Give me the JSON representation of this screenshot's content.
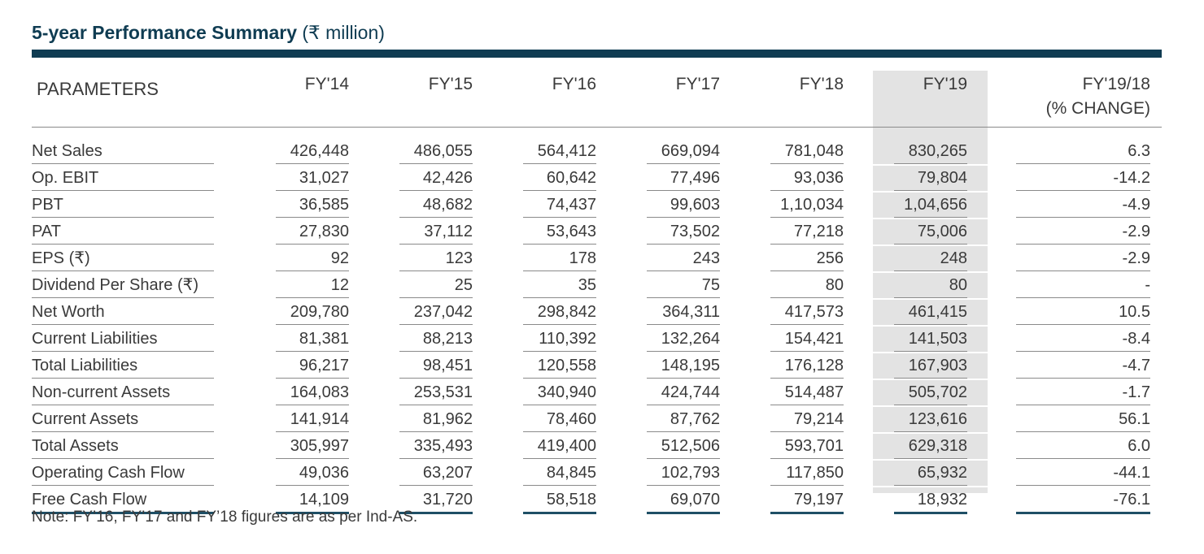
{
  "title": {
    "strong": "5-year Performance Summary",
    "unit": "(₹ million)"
  },
  "headers": {
    "param": "PARAMETERS",
    "years": [
      "FY'14",
      "FY'15",
      "FY'16",
      "FY'17",
      "FY'18",
      "FY'19"
    ],
    "change_line1": "FY'19/18",
    "change_line2": "(% CHANGE)"
  },
  "rows": [
    {
      "label": "Net Sales",
      "values": [
        "426,448",
        "486,055",
        "564,412",
        "669,094",
        "781,048",
        "830,265"
      ],
      "change": "6.3"
    },
    {
      "label": "Op. EBIT",
      "values": [
        "31,027",
        "42,426",
        "60,642",
        "77,496",
        "93,036",
        "79,804"
      ],
      "change": "-14.2"
    },
    {
      "label": "PBT",
      "values": [
        "36,585",
        "48,682",
        "74,437",
        "99,603",
        "1,10,034",
        "1,04,656"
      ],
      "change": "-4.9"
    },
    {
      "label": "PAT",
      "values": [
        "27,830",
        "37,112",
        "53,643",
        "73,502",
        "77,218",
        "75,006"
      ],
      "change": "-2.9"
    },
    {
      "label": "EPS (₹)",
      "values": [
        "92",
        "123",
        "178",
        "243",
        "256",
        "248"
      ],
      "change": "-2.9"
    },
    {
      "label": "Dividend Per Share (₹)",
      "values": [
        "12",
        "25",
        "35",
        "75",
        "80",
        "80"
      ],
      "change": "-"
    },
    {
      "label": "Net Worth",
      "values": [
        "209,780",
        "237,042",
        "298,842",
        "364,311",
        "417,573",
        "461,415"
      ],
      "change": "10.5"
    },
    {
      "label": "Current Liabilities",
      "values": [
        "81,381",
        "88,213",
        "110,392",
        "132,264",
        "154,421",
        "141,503"
      ],
      "change": "-8.4"
    },
    {
      "label": "Total Liabilities",
      "values": [
        "96,217",
        "98,451",
        "120,558",
        "148,195",
        "176,128",
        "167,903"
      ],
      "change": "-4.7"
    },
    {
      "label": "Non-current Assets",
      "values": [
        "164,083",
        "253,531",
        "340,940",
        "424,744",
        "514,487",
        "505,702"
      ],
      "change": "-1.7"
    },
    {
      "label": "Current Assets",
      "values": [
        "141,914",
        "81,962",
        "78,460",
        "87,762",
        "79,214",
        "123,616"
      ],
      "change": "56.1"
    },
    {
      "label": "Total Assets",
      "values": [
        "305,997",
        "335,493",
        "419,400",
        "512,506",
        "593,701",
        "629,318"
      ],
      "change": "6.0"
    },
    {
      "label": "Operating Cash Flow",
      "values": [
        "49,036",
        "63,207",
        "84,845",
        "102,793",
        "117,850",
        "65,932"
      ],
      "change": "-44.1"
    },
    {
      "label": "Free Cash Flow",
      "values": [
        "14,109",
        "31,720",
        "58,518",
        "69,070",
        "79,197",
        "18,932"
      ],
      "change": "-76.1"
    }
  ],
  "note": "Note: FY’16, FY’17 and FY’18 figures are as per Ind-AS.",
  "colors": {
    "title": "#0f3c52",
    "rule": "#0f3c52",
    "highlight": "#e3e3e3"
  }
}
